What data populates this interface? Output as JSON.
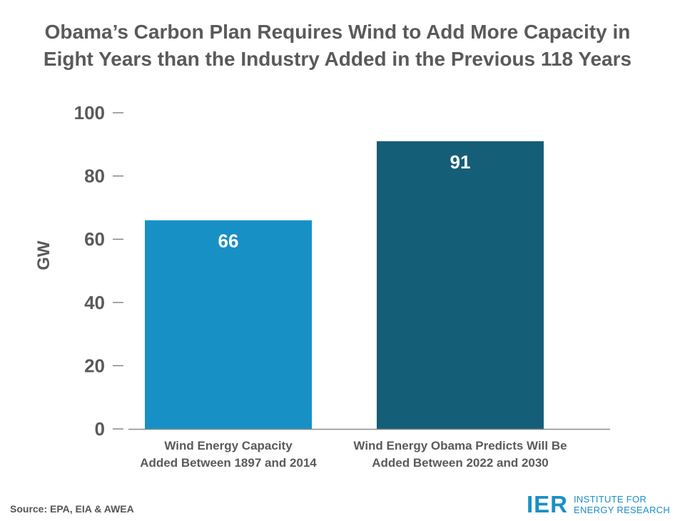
{
  "title": {
    "line1": "Obama’s Carbon Plan Requires Wind to Add More Capacity in",
    "line2": "Eight Years than the Industry Added in the Previous 118 Years"
  },
  "chart_data": {
    "type": "bar",
    "categories": [
      [
        "Wind Energy Capacity",
        "Added Between 1897 and 2014"
      ],
      [
        "Wind Energy Obama Predicts Will Be",
        "Added Between 2022 and 2030"
      ]
    ],
    "values": [
      66,
      91
    ],
    "data_labels": [
      "66",
      "91"
    ],
    "colors": [
      "#1790c6",
      "#155e78"
    ],
    "ylabel": "GW",
    "ylim": [
      0,
      100
    ],
    "yticks": [
      0,
      20,
      40,
      60,
      80,
      100
    ],
    "grid": false,
    "legend": "none"
  },
  "source": "Source: EPA, EIA & AWEA",
  "logo": {
    "mark": "IER",
    "line1": "INSTITUTE FOR",
    "line2": "ENERGY RESEARCH"
  },
  "colors": {
    "text": "#5a5a5a",
    "brand": "#1a8fc6"
  }
}
